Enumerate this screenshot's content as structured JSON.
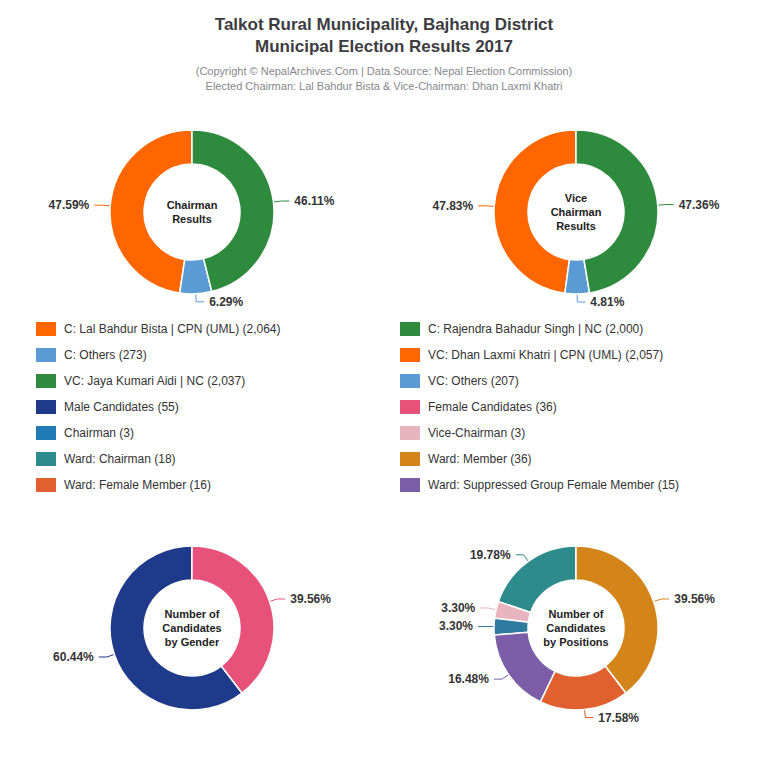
{
  "title": "Talkot Rural Municipality, Bajhang District\nMunicipal Election Results 2017",
  "subtitle": "(Copyright © NepalArchives.Com | Data Source: Nepal Election Commission)\nElected Chairman: Lal Bahdur Bista & Vice-Chairman: Dhan Laxmi Khatri",
  "legend_entries": [
    {
      "label": "C: Lal Bahdur Bista | CPN (UML) (2,064)",
      "color": "#FF6600"
    },
    {
      "label": "C: Others (273)",
      "color": "#5B9BD5"
    },
    {
      "label": "VC: Jaya Kumari Aidi | NC (2,037)",
      "color": "#2E8B3E"
    },
    {
      "label": "Male Candidates (55)",
      "color": "#1F3A8A"
    },
    {
      "label": "Chairman (3)",
      "color": "#1F7AB5"
    },
    {
      "label": "Ward: Chairman (18)",
      "color": "#2E8B8B"
    },
    {
      "label": "Ward: Female Member (16)",
      "color": "#E06030"
    },
    {
      "label": "C: Rajendra Bahadur Singh | NC (2,000)",
      "color": "#2E8B3E"
    },
    {
      "label": "VC: Dhan Laxmi Khatri | CPN (UML) (2,057)",
      "color": "#FF6600"
    },
    {
      "label": "VC: Others (207)",
      "color": "#5B9BD5"
    },
    {
      "label": "Female Candidates (36)",
      "color": "#E8527A"
    },
    {
      "label": "Vice-Chairman (3)",
      "color": "#E8B4C0"
    },
    {
      "label": "Ward: Member (36)",
      "color": "#D4851A"
    },
    {
      "label": "Ward: Suppressed Group Female Member (15)",
      "color": "#7B5EA7"
    }
  ],
  "chart_data": [
    {
      "type": "pie",
      "title": "Chairman\nResults",
      "values": [
        47.59,
        6.29,
        46.11
      ],
      "value_labels": [
        "47.59%",
        "6.29%",
        "46.11%"
      ],
      "colors": [
        "#FF6600",
        "#5B9BD5",
        "#2E8B3E"
      ],
      "data_labels": true
    },
    {
      "type": "pie",
      "title": "Vice\nChairman\nResults",
      "values": [
        47.83,
        4.81,
        47.36
      ],
      "value_labels": [
        "47.83%",
        "4.81%",
        "47.36%"
      ],
      "colors": [
        "#FF6600",
        "#5B9BD5",
        "#2E8B3E"
      ],
      "data_labels": true
    },
    {
      "type": "pie",
      "title": "Number of\nCandidates\nby Gender",
      "values": [
        60.44,
        39.56
      ],
      "value_labels": [
        "60.44%",
        "39.56%"
      ],
      "colors": [
        "#1F3A8A",
        "#E8527A"
      ],
      "data_labels": true
    },
    {
      "type": "pie",
      "title": "Number of\nCandidates\nby Positions",
      "values": [
        19.78,
        3.3,
        3.3,
        16.48,
        17.58,
        39.56
      ],
      "value_labels": [
        "19.78%",
        "3.30%",
        "3.30%",
        "16.48%",
        "17.58%",
        "39.56%"
      ],
      "colors": [
        "#2E8B8B",
        "#E8B4C0",
        "#2E7BA0",
        "#7B5EA7",
        "#E06030",
        "#D4851A"
      ],
      "data_labels": true
    }
  ]
}
